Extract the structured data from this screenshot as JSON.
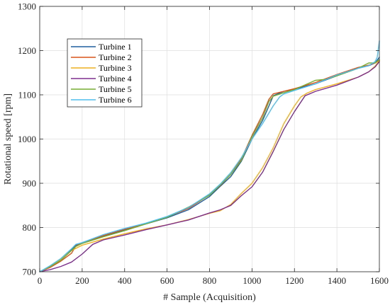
{
  "chart_data": {
    "type": "line",
    "xlabel": "# Sample (Acquisition)",
    "ylabel": "Rotational speed [rpm]",
    "xlim": [
      0,
      1600
    ],
    "ylim": [
      700,
      1300
    ],
    "xticks": [
      0,
      200,
      400,
      600,
      800,
      1000,
      1200,
      1400,
      1600
    ],
    "yticks": [
      700,
      800,
      900,
      1000,
      1100,
      1200,
      1300
    ],
    "grid": true,
    "legend_position": "top-left",
    "series": [
      {
        "name": "Turbine 1",
        "color": "#1f5fa0",
        "x": [
          0,
          50,
          100,
          150,
          170,
          200,
          300,
          400,
          500,
          600,
          700,
          800,
          850,
          900,
          950,
          1000,
          1050,
          1080,
          1100,
          1150,
          1200,
          1300,
          1400,
          1500,
          1550,
          1580,
          1600
        ],
        "y": [
          700,
          712,
          728,
          750,
          760,
          764,
          780,
          795,
          808,
          822,
          840,
          870,
          893,
          915,
          950,
          1000,
          1042,
          1075,
          1098,
          1108,
          1113,
          1125,
          1143,
          1160,
          1166,
          1172,
          1185
        ]
      },
      {
        "name": "Turbine 2",
        "color": "#d95319",
        "x": [
          0,
          50,
          100,
          150,
          170,
          200,
          300,
          400,
          500,
          600,
          700,
          800,
          850,
          900,
          950,
          1000,
          1050,
          1080,
          1100,
          1150,
          1200,
          1300,
          1400,
          1500,
          1550,
          1580,
          1600
        ],
        "y": [
          700,
          710,
          724,
          742,
          758,
          766,
          782,
          796,
          809,
          824,
          843,
          874,
          895,
          920,
          955,
          1008,
          1055,
          1090,
          1102,
          1108,
          1114,
          1128,
          1146,
          1162,
          1167,
          1172,
          1178
        ]
      },
      {
        "name": "Turbine 3",
        "color": "#edb120",
        "x": [
          0,
          50,
          100,
          150,
          200,
          300,
          400,
          500,
          600,
          700,
          800,
          850,
          900,
          950,
          1000,
          1050,
          1100,
          1150,
          1200,
          1230,
          1260,
          1300,
          1400,
          1500,
          1550,
          1580,
          1600
        ],
        "y": [
          700,
          712,
          728,
          748,
          760,
          774,
          786,
          797,
          806,
          818,
          832,
          838,
          852,
          877,
          900,
          935,
          980,
          1035,
          1075,
          1095,
          1104,
          1112,
          1125,
          1140,
          1152,
          1165,
          1178
        ]
      },
      {
        "name": "Turbine 4",
        "color": "#7e2f8e",
        "x": [
          0,
          50,
          100,
          150,
          200,
          250,
          300,
          400,
          500,
          600,
          700,
          800,
          850,
          900,
          950,
          1000,
          1050,
          1100,
          1150,
          1200,
          1250,
          1300,
          1400,
          1500,
          1550,
          1580,
          1600
        ],
        "y": [
          700,
          705,
          712,
          722,
          740,
          762,
          772,
          783,
          795,
          806,
          817,
          833,
          840,
          850,
          872,
          892,
          925,
          972,
          1022,
          1062,
          1098,
          1108,
          1122,
          1140,
          1152,
          1163,
          1175
        ]
      },
      {
        "name": "Turbine 5",
        "color": "#77ac30",
        "x": [
          0,
          50,
          100,
          150,
          170,
          200,
          300,
          400,
          500,
          600,
          700,
          800,
          850,
          900,
          950,
          1000,
          1050,
          1080,
          1100,
          1150,
          1200,
          1300,
          1350,
          1400,
          1500,
          1550,
          1580,
          1600
        ],
        "y": [
          700,
          712,
          726,
          748,
          757,
          764,
          779,
          793,
          808,
          823,
          846,
          873,
          896,
          920,
          952,
          1005,
          1048,
          1085,
          1097,
          1105,
          1112,
          1133,
          1135,
          1143,
          1160,
          1172,
          1172,
          1180
        ]
      },
      {
        "name": "Turbine 6",
        "color": "#4dbeee",
        "x": [
          0,
          50,
          100,
          150,
          170,
          200,
          300,
          400,
          500,
          600,
          700,
          800,
          850,
          900,
          950,
          1000,
          1050,
          1100,
          1130,
          1150,
          1200,
          1300,
          1400,
          1500,
          1550,
          1580,
          1590,
          1600
        ],
        "y": [
          700,
          714,
          730,
          752,
          762,
          766,
          784,
          798,
          810,
          825,
          845,
          876,
          898,
          924,
          958,
          1000,
          1035,
          1075,
          1095,
          1102,
          1110,
          1125,
          1145,
          1160,
          1166,
          1175,
          1185,
          1222
        ]
      }
    ]
  }
}
